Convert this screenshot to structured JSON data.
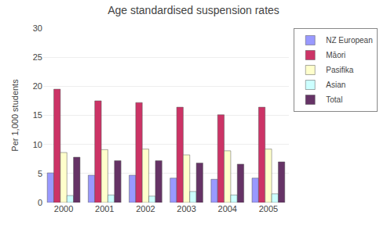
{
  "chart_data": {
    "type": "bar",
    "title": "Age standardised suspension rates",
    "ylabel": "Per 1,000 students",
    "categories": [
      "2000",
      "2001",
      "2002",
      "2003",
      "2004",
      "2005"
    ],
    "series": [
      {
        "name": "NZ European",
        "color": "#9999FF",
        "values": [
          5.1,
          4.7,
          4.7,
          4.2,
          4.0,
          4.2
        ]
      },
      {
        "name": "Māori",
        "color": "#CC3366",
        "values": [
          19.5,
          17.5,
          17.2,
          16.4,
          15.1,
          16.4
        ]
      },
      {
        "name": "Pasifika",
        "color": "#FFFFCC",
        "values": [
          8.6,
          9.1,
          9.2,
          8.2,
          8.9,
          9.2
        ]
      },
      {
        "name": "Asian",
        "color": "#CCFFFF",
        "values": [
          1.2,
          1.3,
          1.1,
          1.9,
          1.3,
          1.5
        ]
      },
      {
        "name": "Total",
        "color": "#663366",
        "values": [
          7.8,
          7.2,
          7.2,
          6.8,
          6.6,
          7.0
        ]
      }
    ],
    "ylim": [
      0,
      30
    ],
    "yticks": [
      0,
      5,
      10,
      15,
      20,
      25,
      30
    ],
    "grid": true,
    "legend": "right"
  }
}
